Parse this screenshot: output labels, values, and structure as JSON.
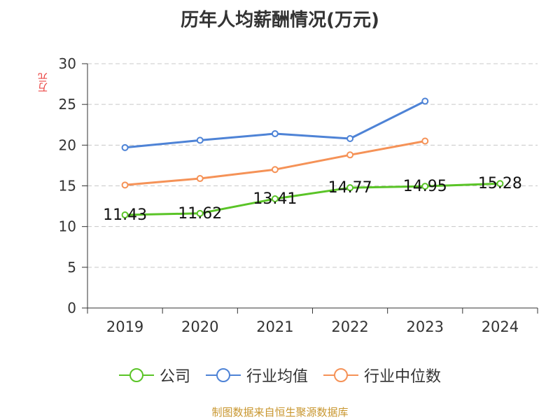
{
  "chart_data": {
    "type": "line",
    "title": "历年人均薪酬情况(万元)",
    "ylabel": "万元",
    "xlabel": "",
    "categories": [
      "2019",
      "2020",
      "2021",
      "2022",
      "2023",
      "2024"
    ],
    "ylim": [
      0,
      30
    ],
    "yticks": [
      0,
      5,
      10,
      15,
      20,
      25,
      30
    ],
    "grid": true,
    "legend_position": "bottom",
    "series": [
      {
        "name": "公司",
        "color": "#5ac427",
        "values": [
          11.43,
          11.62,
          13.41,
          14.77,
          14.95,
          15.28
        ],
        "labels": [
          "11.43",
          "11.62",
          "13.41",
          "14.77",
          "14.95",
          "15.28"
        ]
      },
      {
        "name": "行业均值",
        "color": "#4e83d6",
        "values": [
          19.7,
          20.6,
          21.4,
          20.8,
          25.4,
          null
        ]
      },
      {
        "name": "行业中位数",
        "color": "#f59257",
        "values": [
          15.1,
          15.9,
          17.0,
          18.8,
          20.5,
          null
        ]
      }
    ]
  },
  "source": "制图数据来自恒生聚源数据库"
}
